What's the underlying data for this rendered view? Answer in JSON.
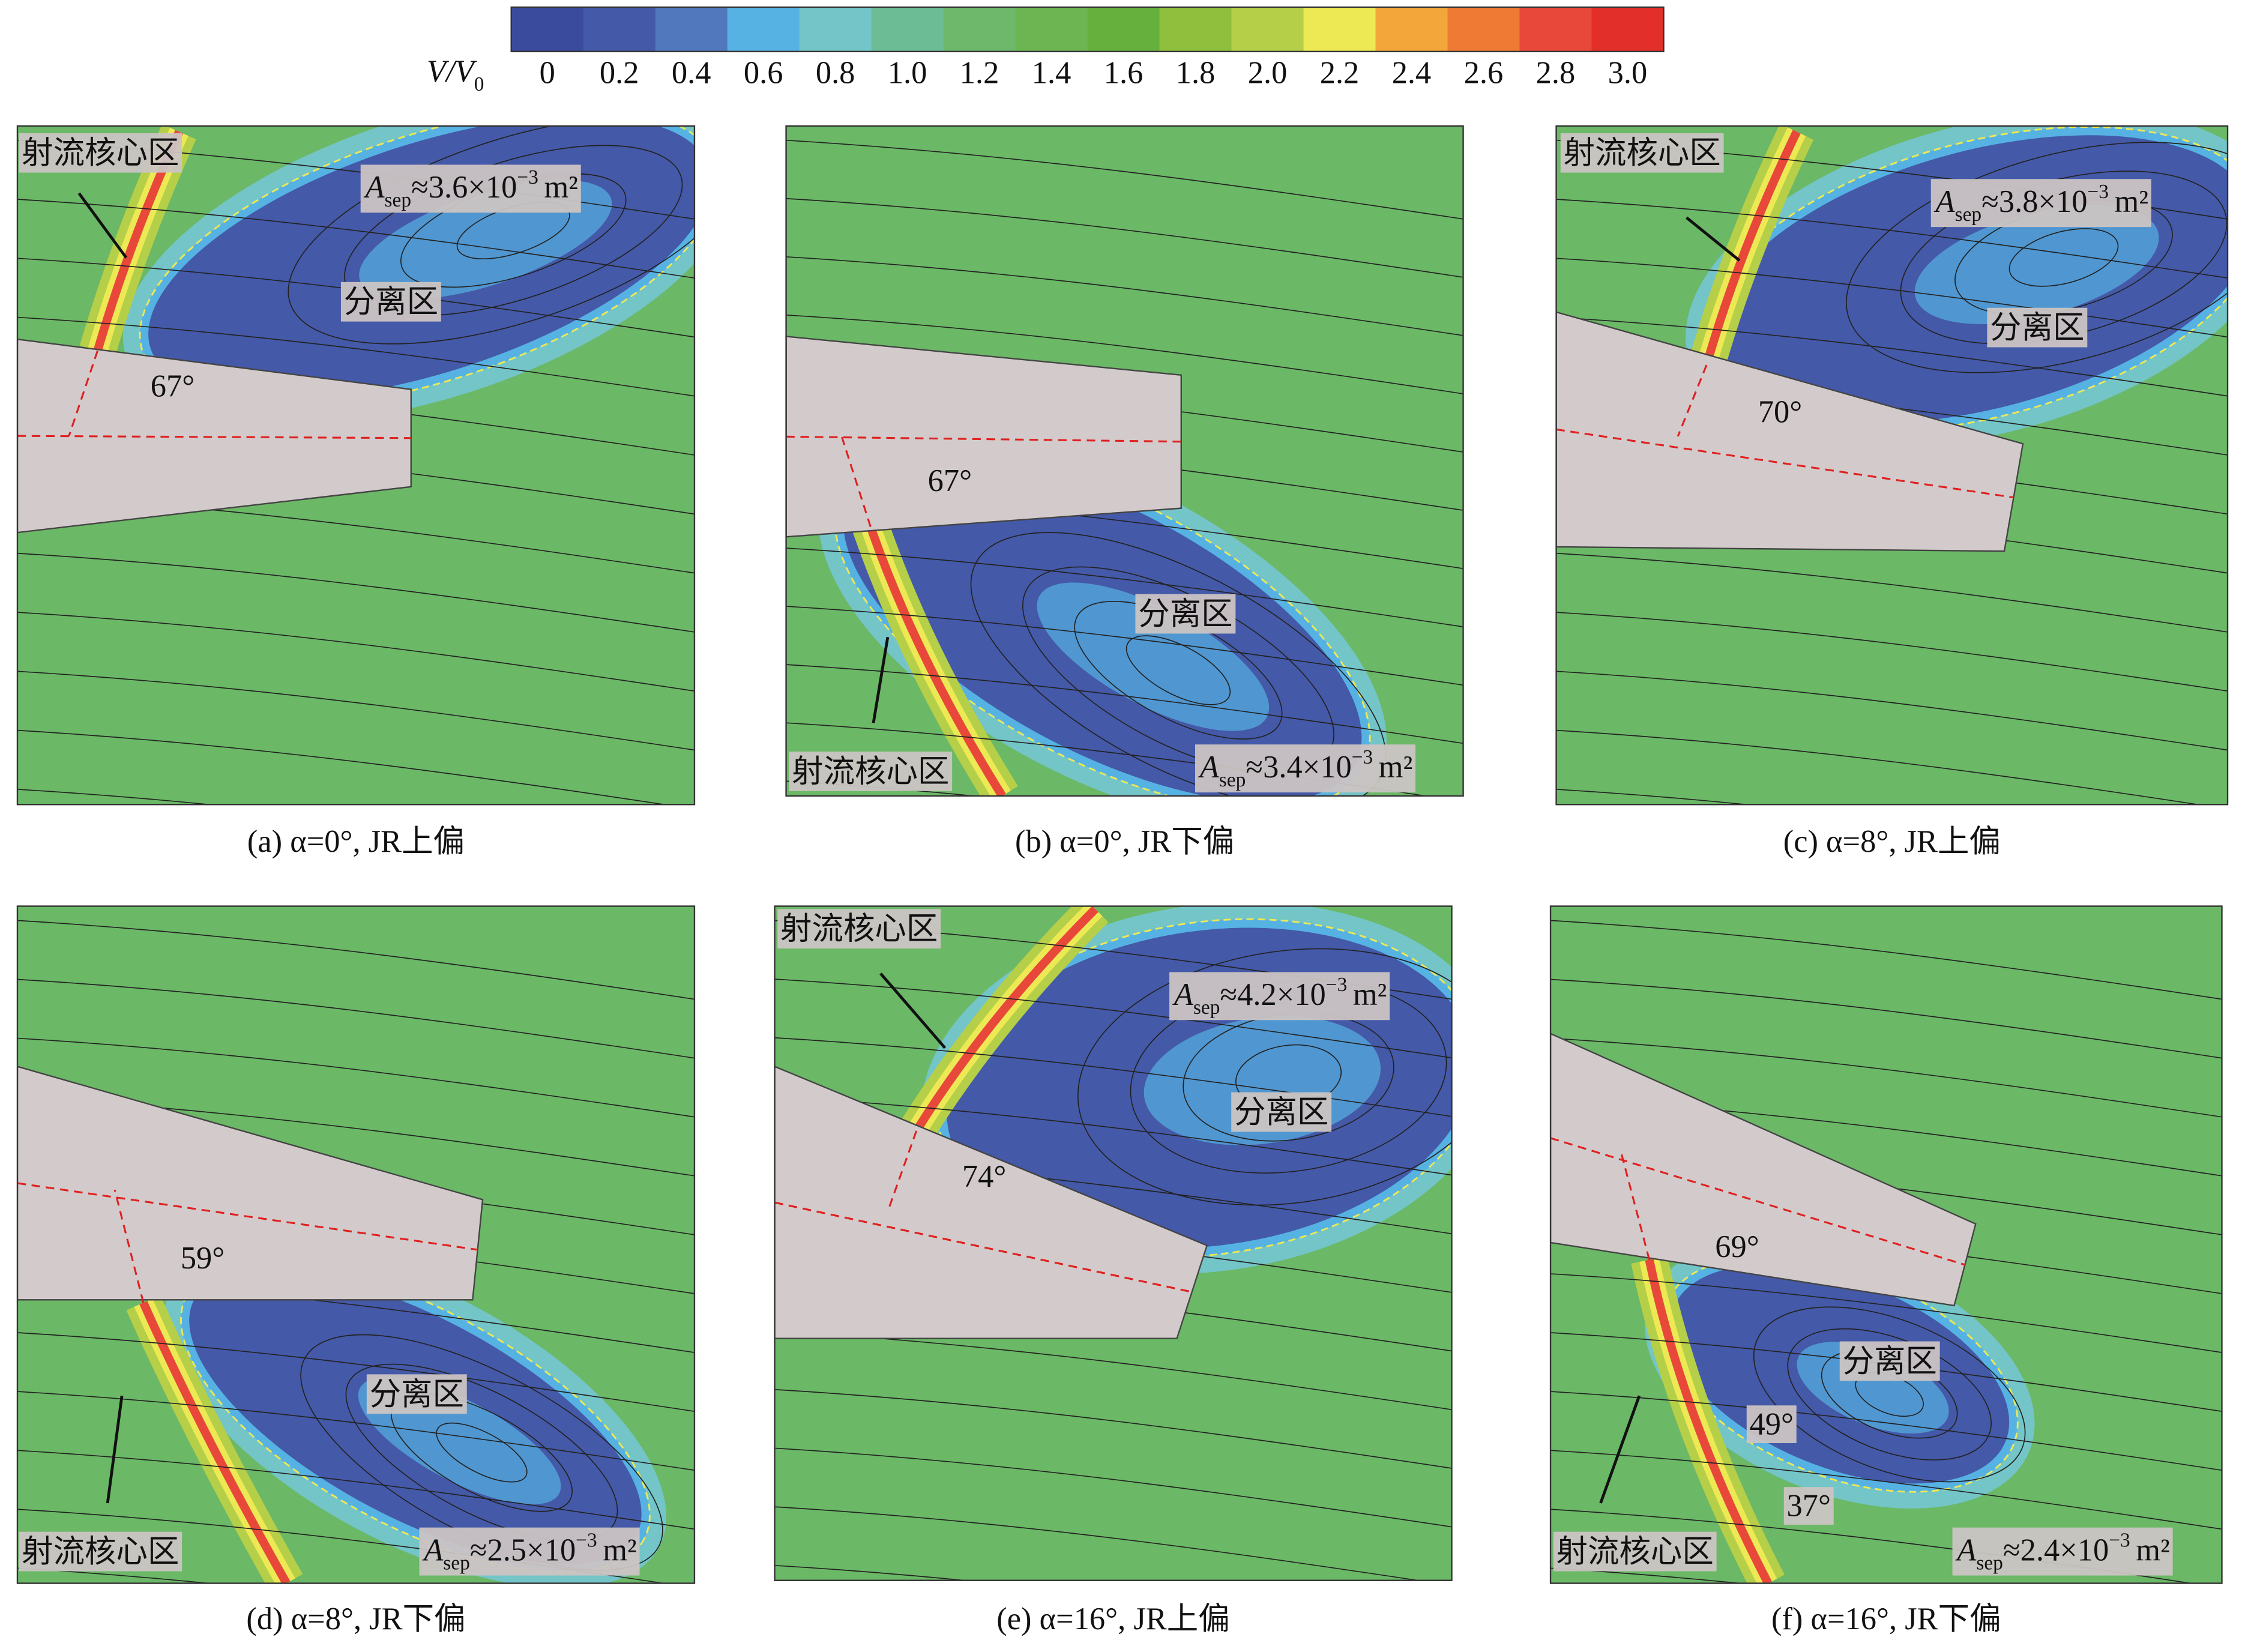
{
  "colorbar": {
    "label": "V/V",
    "label_subscript": "0",
    "ticks": [
      "0",
      "0.2",
      "0.4",
      "0.6",
      "0.8",
      "1.0",
      "1.2",
      "1.4",
      "1.6",
      "1.8",
      "2.0",
      "2.2",
      "2.4",
      "2.6",
      "2.8",
      "3.0"
    ],
    "colors": [
      "#3a4a9c",
      "#4459a8",
      "#5177bd",
      "#56b2e2",
      "#74c5c8",
      "#6cbd96",
      "#6db86a",
      "#6cb552",
      "#66b13e",
      "#8fbf3c",
      "#b5cf48",
      "#ede955",
      "#f3a73a",
      "#ee7a34",
      "#e8483a",
      "#e32f2a"
    ]
  },
  "panels": [
    {
      "caption": "(a) α=0°, JR上偏",
      "core_label": "射流核心区",
      "sep_label": "分离区",
      "area": {
        "symbol": "A",
        "subscript": "sep",
        "value": "≈3.6×10",
        "exponent": "−3",
        "unit": "m²"
      },
      "angles": [
        "67°"
      ]
    },
    {
      "caption": "(b) α=0°, JR下偏",
      "core_label": "射流核心区",
      "sep_label": "分离区",
      "area": {
        "symbol": "A",
        "subscript": "sep",
        "value": "≈3.4×10",
        "exponent": "−3",
        "unit": "m²"
      },
      "angles": [
        "67°"
      ]
    },
    {
      "caption": "(c) α=8°, JR上偏",
      "core_label": "射流核心区",
      "sep_label": "分离区",
      "area": {
        "symbol": "A",
        "subscript": "sep",
        "value": "≈3.8×10",
        "exponent": "−3",
        "unit": "m²"
      },
      "angles": [
        "70°"
      ]
    },
    {
      "caption": "(d) α=8°, JR下偏",
      "core_label": "射流核心区",
      "sep_label": "分离区",
      "area": {
        "symbol": "A",
        "subscript": "sep",
        "value": "≈2.5×10",
        "exponent": "−3",
        "unit": "m²"
      },
      "angles": [
        "59°"
      ]
    },
    {
      "caption": "(e) α=16°, JR上偏",
      "core_label": "射流核心区",
      "sep_label": "分离区",
      "area": {
        "symbol": "A",
        "subscript": "sep",
        "value": "≈4.2×10",
        "exponent": "−3",
        "unit": "m²"
      },
      "angles": [
        "74°"
      ]
    },
    {
      "caption": "(f) α=16°, JR下偏",
      "core_label": "射流核心区",
      "sep_label": "分离区",
      "area": {
        "symbol": "A",
        "subscript": "sep",
        "value": "≈2.4×10",
        "exponent": "−3",
        "unit": "m²"
      },
      "angles": [
        "69°",
        "49°",
        "37°"
      ]
    }
  ]
}
